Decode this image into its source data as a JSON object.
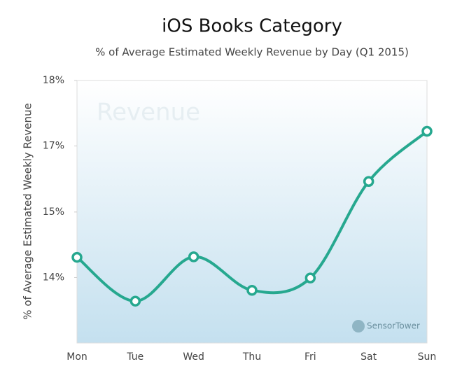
{
  "chart_data": {
    "type": "line",
    "title": "iOS Books Category",
    "subtitle": "% of Average Estimated Weekly Revenue by Day (Q1 2015)",
    "y_label": "% of  Average Estimated Weekly Revenue",
    "watermark": "Revenue",
    "brand": "SensorTower",
    "categories": [
      "Mon",
      "Tue",
      "Wed",
      "Thu",
      "Fri",
      "Sat",
      "Sun"
    ],
    "values": [
      14.41,
      13.52,
      14.42,
      13.74,
      13.99,
      15.95,
      16.97
    ],
    "color": "#26a88f",
    "ylim": [
      12.67,
      18
    ],
    "yticks": [
      {
        "value": 18,
        "label": "18%"
      },
      {
        "value": 16.67,
        "label": "17%"
      },
      {
        "value": 15.33,
        "label": "15%"
      },
      {
        "value": 14,
        "label": "14%"
      }
    ]
  }
}
